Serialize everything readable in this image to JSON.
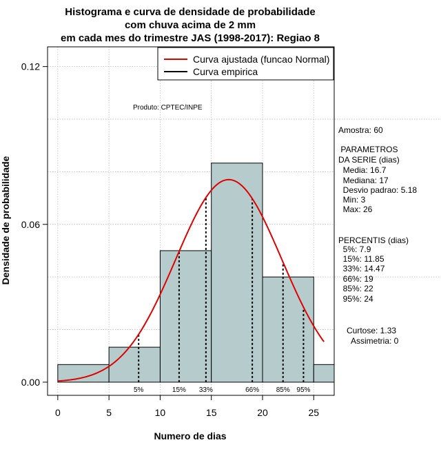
{
  "chart_data": {
    "type": "bar",
    "title_lines": [
      "Histograma e curva de densidade de probabilidade",
      "com chuva acima de 2 mm",
      "em cada mes do trimestre JAS (1998-2017): Regiao 8"
    ],
    "xlabel": "Numero de dias",
    "ylabel": "Densidade de probabilidade",
    "xlim": [
      -1,
      27
    ],
    "ylim": [
      -0.005,
      0.1275
    ],
    "x_ticks": [
      0,
      5,
      10,
      15,
      20,
      25
    ],
    "y_ticks": [
      0.0,
      0.06,
      0.12
    ],
    "y_tick_labels": [
      "0.00",
      "0.06",
      "0.12"
    ],
    "bins": [
      {
        "from": 0,
        "to": 5,
        "density": 0.0067
      },
      {
        "from": 5,
        "to": 10,
        "density": 0.0133
      },
      {
        "from": 10,
        "to": 15,
        "density": 0.05
      },
      {
        "from": 15,
        "to": 20,
        "density": 0.0833
      },
      {
        "from": 20,
        "to": 25,
        "density": 0.04
      },
      {
        "from": 25,
        "to": 30,
        "density": 0.0067
      }
    ],
    "bar_color": "#b6cccc",
    "curve_color": "#e00000",
    "normal": {
      "mean": 16.7,
      "sd": 5.18,
      "x_from": 0,
      "x_to": 26
    },
    "percentile_lines": [
      {
        "label": "5%",
        "x": 7.9
      },
      {
        "label": "15%",
        "x": 11.85
      },
      {
        "label": "33%",
        "x": 14.47
      },
      {
        "label": "66%",
        "x": 19
      },
      {
        "label": "85%",
        "x": 22
      },
      {
        "label": "95%",
        "x": 24
      }
    ],
    "legend": [
      {
        "label": "Curva ajustada (funcao Normal)",
        "color": "#e00000"
      },
      {
        "label": "Curva empirica",
        "color": "#000000"
      }
    ],
    "legend_position": "top-right",
    "annotation": "Produto: CPTEC/INPE",
    "side_text": [
      "Amostra: 60",
      " PARAMETROS",
      "DA SERIE (dias)",
      "  Media: 16.7",
      "  Mediana: 17",
      "  Desvio padrao: 5.18",
      "  Min: 3",
      "  Max: 26",
      "PERCENTIS (dias)",
      "  5%: 7.9",
      "  15%: 11.85",
      "  33%: 14.47",
      "  66%: 19",
      "  85%: 22",
      "  95%: 24",
      "Curtose: 1.33",
      "  Assimetria: 0"
    ]
  }
}
